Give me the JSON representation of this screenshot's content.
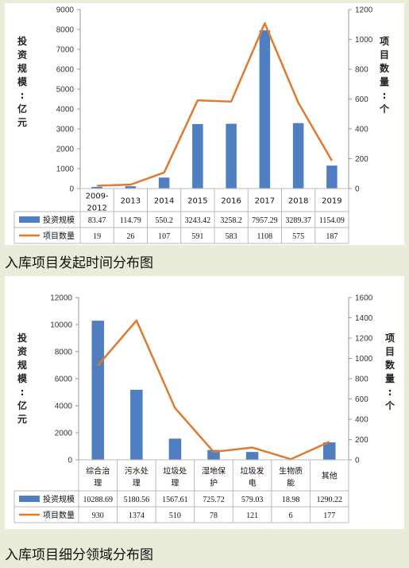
{
  "captions": {
    "chart1": "入库项目发起时间分布图",
    "chart2": "入库项目细分领域分布图"
  },
  "colors": {
    "bar": "#4f7fc0",
    "line": "#e07a2e",
    "axis": "#9a9a9a",
    "grid": "#b8b8b8"
  },
  "chart_data": [
    {
      "type": "bar",
      "title": "",
      "categories": [
        "2009-2012",
        "2013",
        "2014",
        "2015",
        "2016",
        "2017",
        "2018",
        "2019"
      ],
      "series": [
        {
          "name": "投资规模",
          "kind": "bar",
          "axis": "left",
          "values": [
            83.47,
            114.79,
            550.2,
            3243.42,
            3258.2,
            7957.29,
            3289.37,
            1154.09
          ],
          "labels": [
            "83.47",
            "114.79",
            "550.2",
            "3243.42",
            "3258.2",
            "7957.29",
            "3289.37",
            "1154.09"
          ]
        },
        {
          "name": "项目数量",
          "kind": "line",
          "axis": "right",
          "values": [
            19,
            26,
            107,
            591,
            583,
            1108,
            575,
            187
          ],
          "labels": [
            "19",
            "26",
            "107",
            "591",
            "583",
            "1108",
            "575",
            "187"
          ]
        }
      ],
      "ylabel": "投资规模：亿元",
      "y2label": "项目数量：个",
      "ylim": [
        0,
        9000
      ],
      "y2lim": [
        0,
        1200
      ],
      "yticks": [
        0,
        1000,
        2000,
        3000,
        4000,
        5000,
        6000,
        7000,
        8000,
        9000
      ],
      "y2ticks": [
        0,
        200,
        400,
        600,
        800,
        1000,
        1200
      ],
      "grid": false,
      "legend": "data-table"
    },
    {
      "type": "bar",
      "title": "",
      "categories": [
        "综合治理",
        "污水处理",
        "垃圾处理",
        "湿地保护",
        "垃圾发电",
        "生物质能",
        "其他"
      ],
      "series": [
        {
          "name": "投资规模",
          "kind": "bar",
          "axis": "left",
          "values": [
            10288.69,
            5180.56,
            1567.61,
            725.72,
            579.03,
            18.98,
            1290.22
          ],
          "labels": [
            "10288.69",
            "5180.56",
            "1567.61",
            "725.72",
            "579.03",
            "18.98",
            "1290.22"
          ]
        },
        {
          "name": "项目数量",
          "kind": "line",
          "axis": "right",
          "values": [
            930,
            1374,
            510,
            78,
            121,
            6,
            177
          ],
          "labels": [
            "930",
            "1374",
            "510",
            "78",
            "121",
            "6",
            "177"
          ]
        }
      ],
      "ylabel": "投资规模：亿元",
      "y2label": "项目数量：个",
      "ylim": [
        0,
        12000
      ],
      "y2lim": [
        0,
        1600
      ],
      "yticks": [
        0,
        2000,
        4000,
        6000,
        8000,
        10000,
        12000
      ],
      "y2ticks": [
        0,
        200,
        400,
        600,
        800,
        1000,
        1200,
        1400,
        1600
      ],
      "grid": false,
      "legend": "data-table"
    }
  ]
}
